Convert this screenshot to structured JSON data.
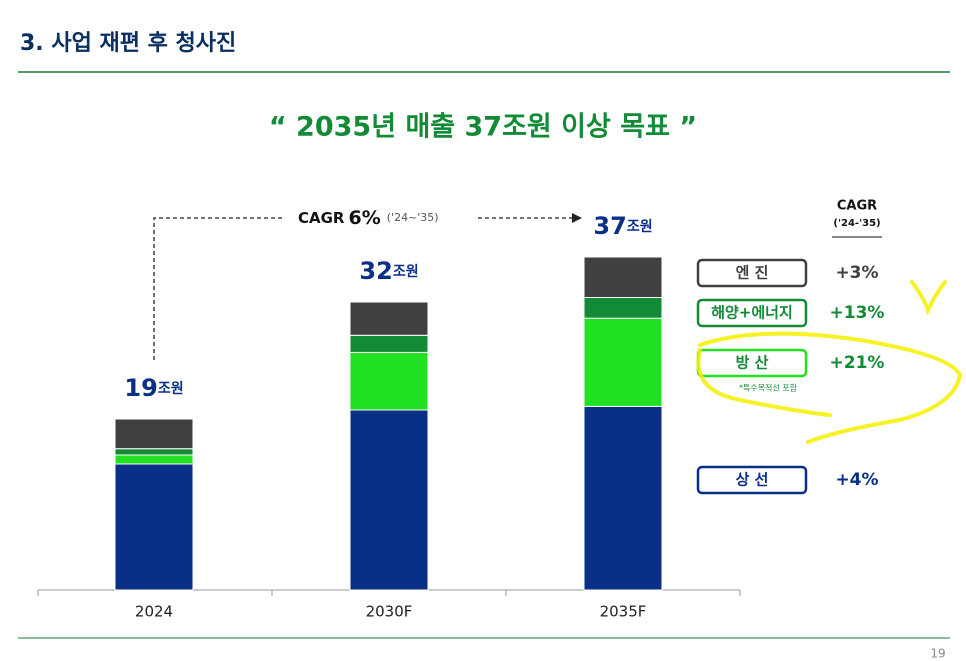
{
  "header": "3. 사업 재편 후 청사진",
  "page_number": "19",
  "chart_data": {
    "type": "stacked_bar",
    "title": "“ 2035년 매출 37조원 이상 목표 ”",
    "categories": [
      "2024",
      "2030F",
      "2035F"
    ],
    "totals": [
      19,
      32,
      37
    ],
    "total_unit": "조원",
    "series": [
      {
        "name": "상 선",
        "color": "#0a2f87",
        "values": [
          14,
          20,
          20.4
        ],
        "cagr": 4,
        "cagr_label": "+4%"
      },
      {
        "name": "방 산",
        "color": "#22e022",
        "values": [
          1,
          6.4,
          9.8
        ],
        "cagr": 21,
        "cagr_label": "+21%",
        "note": "*특수목적선 포함"
      },
      {
        "name": "해양+에너지",
        "color": "#138a36",
        "values": [
          0.7,
          1.9,
          2.3
        ],
        "cagr": 13,
        "cagr_label": "+13%"
      },
      {
        "name": "엔 진",
        "color": "#404040",
        "values": [
          3.3,
          3.7,
          4.5
        ],
        "cagr": 3,
        "cagr_label": "+3%"
      }
    ],
    "cagr_header": "CAGR",
    "cagr_period": "('24-'35)",
    "annotation": {
      "label": "CAGR",
      "value": 6,
      "value_label": "6%",
      "period": "('24~'35)"
    }
  }
}
